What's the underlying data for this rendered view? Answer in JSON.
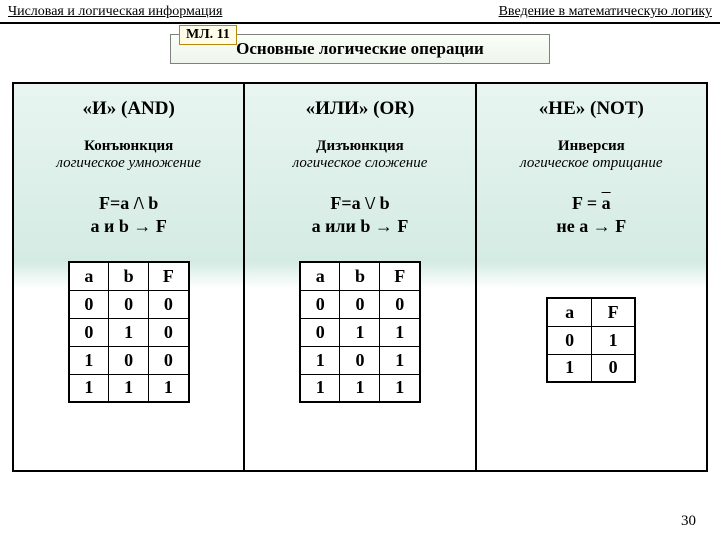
{
  "header": {
    "left": "Числовая и логическая информация",
    "right": "Введение в математическую логику"
  },
  "badge": "МЛ. 11",
  "title": "Основные логические операции",
  "ops": {
    "and": {
      "title": "«И» (AND)",
      "name": "Конъюнкция",
      "desc": "логическое умножение",
      "formula1": "F=a /\\ b",
      "formula2": "a и b → F",
      "h0": "a",
      "h1": "b",
      "h2": "F",
      "r0c0": "0",
      "r0c1": "0",
      "r0c2": "0",
      "r1c0": "0",
      "r1c1": "1",
      "r1c2": "0",
      "r2c0": "1",
      "r2c1": "0",
      "r2c2": "0",
      "r3c0": "1",
      "r3c1": "1",
      "r3c2": "1"
    },
    "or": {
      "title": "«ИЛИ» (OR)",
      "name": "Дизъюнкция",
      "desc": "логическое сложение",
      "formula1": "F=a \\/ b",
      "formula2": "a или b → F",
      "h0": "a",
      "h1": "b",
      "h2": "F",
      "r0c0": "0",
      "r0c1": "0",
      "r0c2": "0",
      "r1c0": "0",
      "r1c1": "1",
      "r1c2": "1",
      "r2c0": "1",
      "r2c1": "0",
      "r2c2": "1",
      "r3c0": "1",
      "r3c1": "1",
      "r3c2": "1"
    },
    "not": {
      "title": "«НЕ» (NOT)",
      "name": "Инверсия",
      "desc": "логическое отрицание",
      "formula1_prefix": "F = ",
      "formula1_over": "a",
      "formula2": "не a → F",
      "h0": "a",
      "h1": "F",
      "r0c0": "0",
      "r0c1": "1",
      "r1c0": "1",
      "r1c1": "0"
    }
  },
  "page": "30"
}
